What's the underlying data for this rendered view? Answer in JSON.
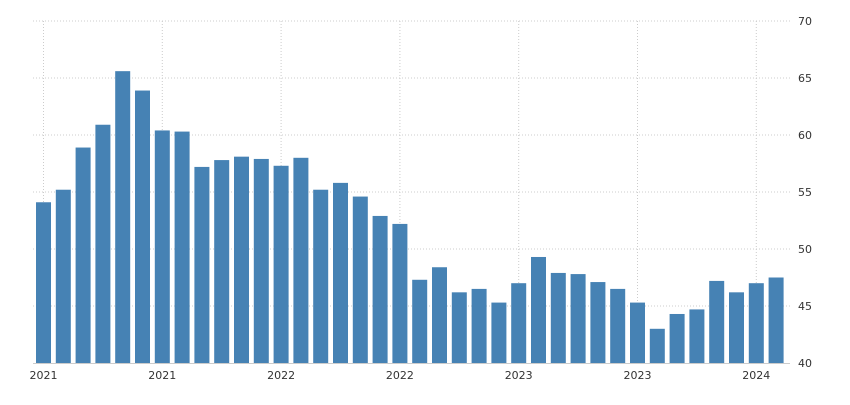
{
  "chart_data": {
    "type": "bar",
    "title": "",
    "xlabel": "",
    "ylabel": "",
    "ylim": [
      40,
      70
    ],
    "y_ticks": [
      40,
      45,
      50,
      55,
      60,
      65,
      70
    ],
    "y_axis_side": "right",
    "grid": true,
    "bar_color": "#4682b4",
    "grid_color": "#cccccc",
    "x_tick_labels": [
      {
        "label": "2021",
        "bar_index": 0
      },
      {
        "label": "2021",
        "bar_index": 6
      },
      {
        "label": "2022",
        "bar_index": 12
      },
      {
        "label": "2022",
        "bar_index": 18
      },
      {
        "label": "2023",
        "bar_index": 24
      },
      {
        "label": "2023",
        "bar_index": 30
      },
      {
        "label": "2024",
        "bar_index": 36
      }
    ],
    "values": [
      54.1,
      55.2,
      58.9,
      60.9,
      65.6,
      63.9,
      60.4,
      60.3,
      57.2,
      57.8,
      58.1,
      57.9,
      57.3,
      58.0,
      55.2,
      55.8,
      54.6,
      52.9,
      52.2,
      47.3,
      48.4,
      46.2,
      46.5,
      45.3,
      47.0,
      49.3,
      47.9,
      47.8,
      47.1,
      46.5,
      45.3,
      43.0,
      44.3,
      44.7,
      47.2,
      46.2,
      47.0,
      47.5
    ]
  }
}
